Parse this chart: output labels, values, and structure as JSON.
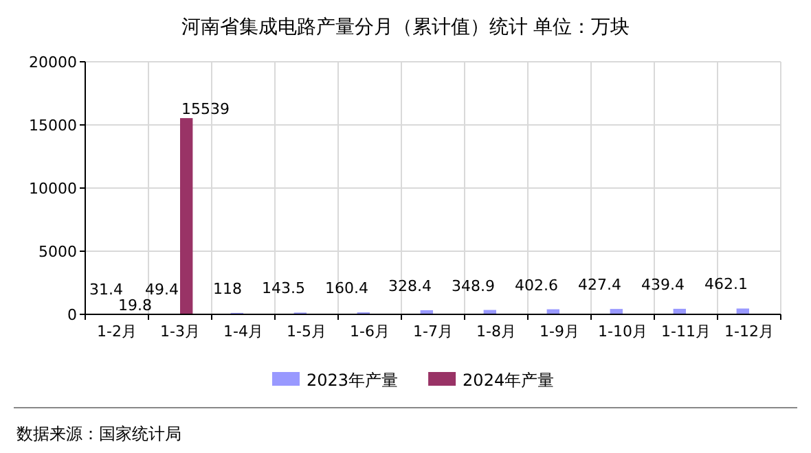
{
  "chart_data": {
    "type": "bar",
    "title": "河南省集成电路产量分月（累计值）统计 单位：万块",
    "categories": [
      "1-2月",
      "1-3月",
      "1-4月",
      "1-5月",
      "1-6月",
      "1-7月",
      "1-8月",
      "1-9月",
      "1-10月",
      "1-11月",
      "1-12月"
    ],
    "series": [
      {
        "name": "2023年产量",
        "color": "#9999ff",
        "values": [
          31.4,
          49.4,
          118,
          143.5,
          160.4,
          328.4,
          348.9,
          402.6,
          427.4,
          439.4,
          462.1
        ]
      },
      {
        "name": "2024年产量",
        "color": "#993366",
        "values": [
          19.8,
          15539,
          null,
          null,
          null,
          null,
          null,
          null,
          null,
          null,
          null
        ]
      }
    ],
    "ylim": [
      0,
      20000
    ],
    "yticks": [
      0,
      5000,
      10000,
      15000,
      20000
    ],
    "grid": true,
    "legend": "bottom",
    "data_labels": true,
    "annotations": [
      "数据来源：国家统计局"
    ]
  }
}
